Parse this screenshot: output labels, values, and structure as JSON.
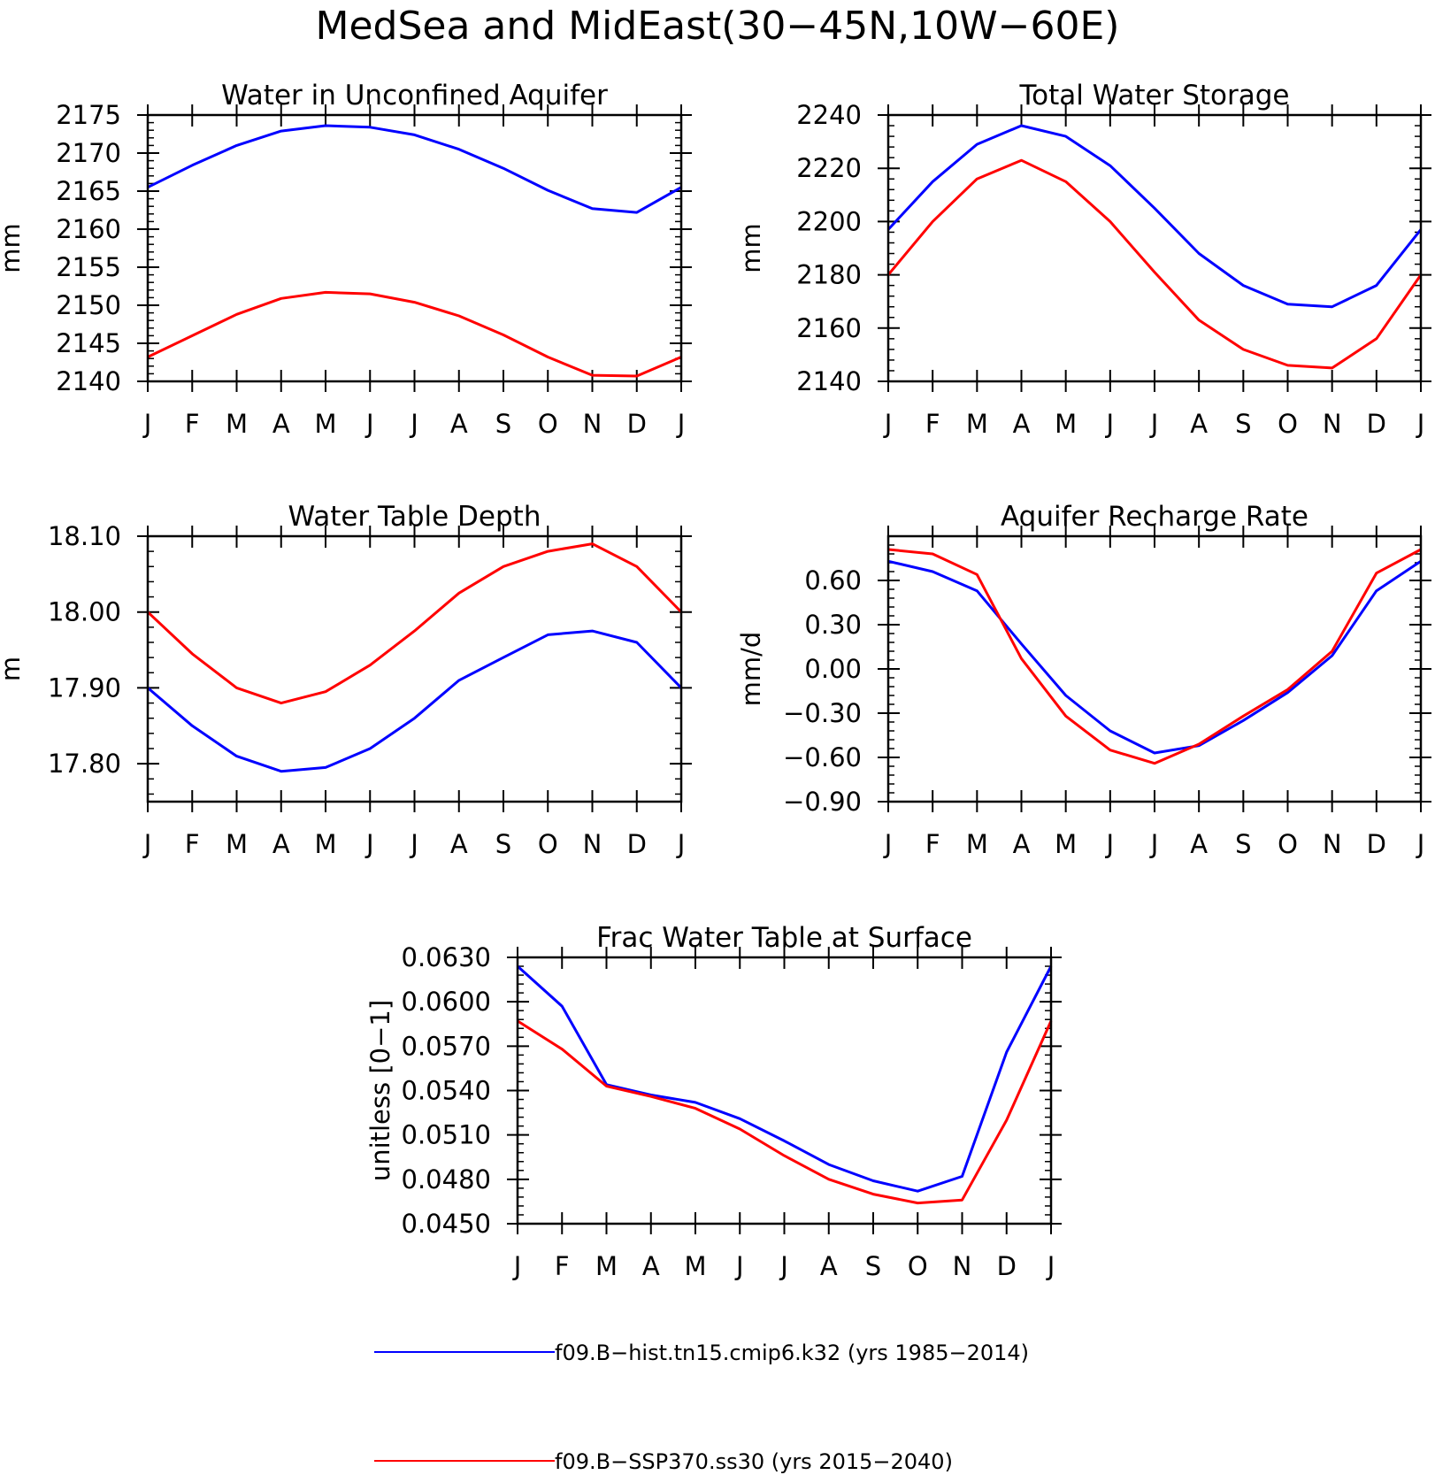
{
  "figure": {
    "title": "MedSea and MidEast(30−45N,10W−60E)"
  },
  "legend": [
    {
      "label": "f09.B−hist.tn15.cmip6.k32 (yrs 1985−2014)",
      "color": "#0000ff"
    },
    {
      "label": "f09.B−SSP370.ss30 (yrs 2015−2040)",
      "color": "#ff0000"
    }
  ],
  "chart_data": [
    {
      "type": "line",
      "title": "Water in Unconfined Aquifer",
      "ylabel": "mm",
      "x": [
        "J",
        "F",
        "M",
        "A",
        "M",
        "J",
        "J",
        "A",
        "S",
        "O",
        "N",
        "D",
        "J"
      ],
      "ylim": [
        2140,
        2175
      ],
      "yticks": [
        "2140",
        "2145",
        "2150",
        "2155",
        "2160",
        "2165",
        "2170",
        "2175"
      ],
      "series": [
        {
          "name": "f09.B−hist.tn15.cmip6.k32 (yrs 1985−2014)",
          "color": "#0000ff",
          "values": [
            2165.5,
            2168.4,
            2171.0,
            2172.9,
            2173.6,
            2173.4,
            2172.4,
            2170.5,
            2168.0,
            2165.1,
            2162.7,
            2162.2,
            2165.5
          ]
        },
        {
          "name": "f09.B−SSP370.ss30 (yrs 2015−2040)",
          "color": "#ff0000",
          "values": [
            2143.2,
            2146.0,
            2148.8,
            2150.9,
            2151.7,
            2151.5,
            2150.4,
            2148.6,
            2146.1,
            2143.2,
            2140.8,
            2140.7,
            2143.2
          ]
        }
      ]
    },
    {
      "type": "line",
      "title": "Total Water Storage",
      "ylabel": "mm",
      "x": [
        "J",
        "F",
        "M",
        "A",
        "M",
        "J",
        "J",
        "A",
        "S",
        "O",
        "N",
        "D",
        "J"
      ],
      "ylim": [
        2140,
        2240
      ],
      "yticks": [
        "2140",
        "2160",
        "2180",
        "2200",
        "2220",
        "2240"
      ],
      "series": [
        {
          "name": "f09.B−hist.tn15.cmip6.k32 (yrs 1985−2014)",
          "color": "#0000ff",
          "values": [
            2197,
            2215,
            2229,
            2236,
            2232,
            2221,
            2205,
            2188,
            2176,
            2169,
            2168,
            2176,
            2197
          ]
        },
        {
          "name": "f09.B−SSP370.ss30 (yrs 2015−2040)",
          "color": "#ff0000",
          "values": [
            2180,
            2200,
            2216,
            2223,
            2215,
            2200,
            2181,
            2163,
            2152,
            2146,
            2145,
            2156,
            2180
          ]
        }
      ]
    },
    {
      "type": "line",
      "title": "Water Table Depth",
      "ylabel": "m",
      "x": [
        "J",
        "F",
        "M",
        "A",
        "M",
        "J",
        "J",
        "A",
        "S",
        "O",
        "N",
        "D",
        "J"
      ],
      "ylim": [
        17.75,
        18.1
      ],
      "yticks": [
        "17.80",
        "17.90",
        "18.00",
        "18.10"
      ],
      "series": [
        {
          "name": "f09.B−hist.tn15.cmip6.k32 (yrs 1985−2014)",
          "color": "#0000ff",
          "values": [
            17.9,
            17.85,
            17.81,
            17.79,
            17.795,
            17.82,
            17.86,
            17.91,
            17.94,
            17.97,
            17.975,
            17.96,
            17.9
          ]
        },
        {
          "name": "f09.B−SSP370.ss30 (yrs 2015−2040)",
          "color": "#ff0000",
          "values": [
            18.0,
            17.945,
            17.9,
            17.88,
            17.895,
            17.93,
            17.975,
            18.025,
            18.06,
            18.08,
            18.09,
            18.06,
            18.0
          ]
        }
      ]
    },
    {
      "type": "line",
      "title": "Aquifer Recharge Rate",
      "ylabel": "mm/d",
      "x": [
        "J",
        "F",
        "M",
        "A",
        "M",
        "J",
        "J",
        "A",
        "S",
        "O",
        "N",
        "D",
        "J"
      ],
      "ylim": [
        -0.9,
        0.9
      ],
      "yticks": [
        "−0.90",
        "−0.60",
        "−0.30",
        "0.00",
        "0.30",
        "0.60"
      ],
      "series": [
        {
          "name": "f09.B−hist.tn15.cmip6.k32 (yrs 1985−2014)",
          "color": "#0000ff",
          "values": [
            0.73,
            0.66,
            0.53,
            0.17,
            -0.18,
            -0.42,
            -0.57,
            -0.52,
            -0.35,
            -0.16,
            0.09,
            0.53,
            0.73
          ]
        },
        {
          "name": "f09.B−SSP370.ss30 (yrs 2015−2040)",
          "color": "#ff0000",
          "values": [
            0.81,
            0.78,
            0.64,
            0.07,
            -0.32,
            -0.55,
            -0.64,
            -0.51,
            -0.32,
            -0.14,
            0.12,
            0.65,
            0.81
          ]
        }
      ]
    },
    {
      "type": "line",
      "title": "Frac Water Table at Surface",
      "ylabel": "unitless [0−1]",
      "x": [
        "J",
        "F",
        "M",
        "A",
        "M",
        "J",
        "J",
        "A",
        "S",
        "O",
        "N",
        "D",
        "J"
      ],
      "ylim": [
        0.045,
        0.063
      ],
      "yticks": [
        "0.0450",
        "0.0480",
        "0.0510",
        "0.0540",
        "0.0570",
        "0.0600",
        "0.0630"
      ],
      "series": [
        {
          "name": "f09.B−hist.tn15.cmip6.k32 (yrs 1985−2014)",
          "color": "#0000ff",
          "values": [
            0.0624,
            0.0597,
            0.0544,
            0.0537,
            0.0532,
            0.0521,
            0.0506,
            0.049,
            0.0479,
            0.0472,
            0.0482,
            0.0566,
            0.0624
          ]
        },
        {
          "name": "f09.B−SSP370.ss30 (yrs 2015−2040)",
          "color": "#ff0000",
          "values": [
            0.0587,
            0.0568,
            0.0543,
            0.0536,
            0.0528,
            0.0514,
            0.0496,
            0.048,
            0.047,
            0.0464,
            0.0466,
            0.052,
            0.0587
          ]
        }
      ]
    }
  ]
}
